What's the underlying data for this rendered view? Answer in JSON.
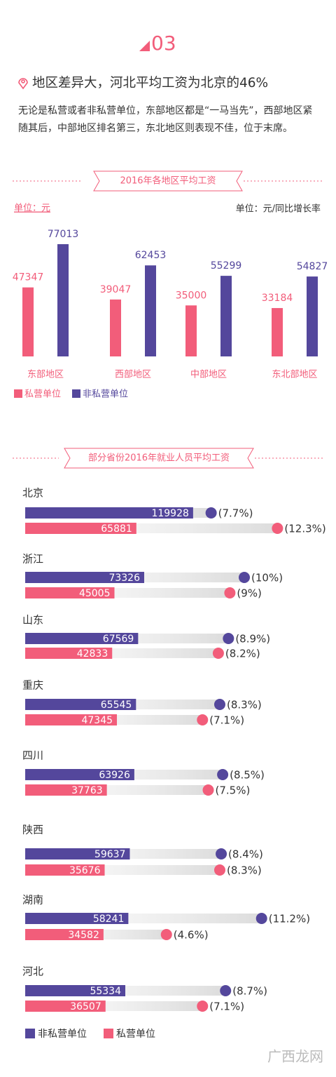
{
  "header": {
    "section": "03",
    "heading": "地区差异大，河北平均工资为北京的46%",
    "body": "无论是私营或者非私营单位，东部地区都是“一马当先”，西部地区紧随其后，中部地区排名第三，东北地区则表现不佳，位于末席。"
  },
  "chart_data": [
    {
      "type": "bar",
      "title": "2016年各地区平均工资",
      "unit": "单位：元",
      "categories": [
        "东部地区",
        "西部地区",
        "中部地区",
        "东北部地区"
      ],
      "series": [
        {
          "name": "私营单位",
          "color": "#f25d7a",
          "values": [
            47347,
            39047,
            35000,
            33184
          ]
        },
        {
          "name": "非私营单位",
          "color": "#54479c",
          "values": [
            77013,
            62453,
            55299,
            54827
          ]
        }
      ]
    },
    {
      "type": "progress",
      "title": "部分省份2016年就业人员平均工资",
      "unit": "单位：元/同比增长率",
      "categories": [
        "北京",
        "浙江",
        "山东",
        "重庆",
        "四川",
        "陕西",
        "湖南",
        "河北"
      ],
      "series": [
        {
          "name": "非私营单位",
          "color": "#54479c",
          "values": [
            119928,
            73326,
            67569,
            65545,
            63926,
            59637,
            58241,
            55334
          ],
          "growth": [
            7.7,
            10,
            8.9,
            8.3,
            8.5,
            8.4,
            11.2,
            8.7
          ],
          "growth_labels": [
            "(7.7%)",
            "(10%)",
            "(8.9%)",
            "(8.3%)",
            "(8.5%)",
            "(8.4%)",
            "(11.2%)",
            "(8.7%)"
          ]
        },
        {
          "name": "私营单位",
          "color": "#f25d7a",
          "values": [
            65881,
            45005,
            42833,
            47345,
            37763,
            35676,
            34582,
            36507
          ],
          "growth": [
            12.3,
            9,
            8.2,
            7.1,
            7.5,
            8.3,
            4.6,
            7.1
          ],
          "growth_labels": [
            "(12.3%)",
            "(9%)",
            "(8.2%)",
            "(7.1%)",
            "(7.5%)",
            "(8.3%)",
            "(4.6%)",
            "(7.1%)"
          ]
        }
      ]
    }
  ],
  "watermark": "广西龙网"
}
